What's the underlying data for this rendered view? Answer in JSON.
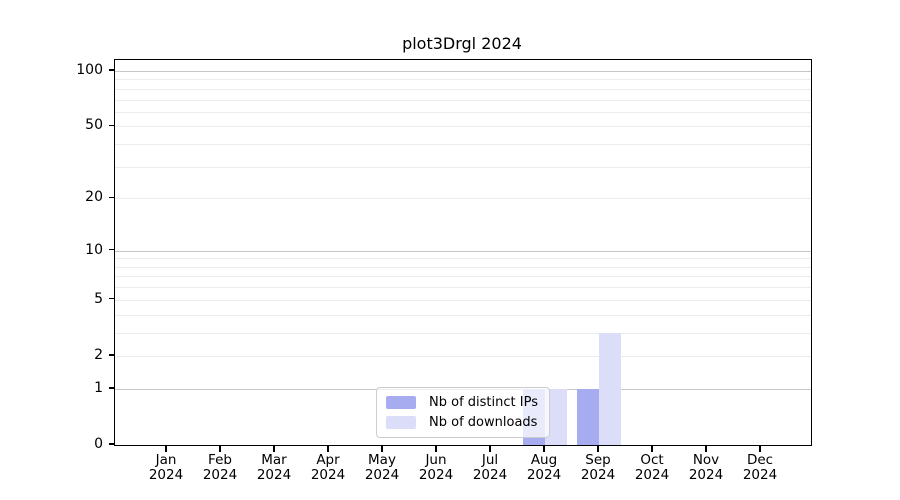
{
  "title": "plot3Drgl 2024",
  "colors": {
    "distinct_ips": "#a7acf1",
    "downloads": "#dcdef9",
    "major_grid": "#c6c6c6",
    "minor_grid": "#ececec",
    "spine": "#000000"
  },
  "chart_data": {
    "type": "bar",
    "title": "plot3Drgl 2024",
    "x_categories": [
      {
        "month": "Jan",
        "year": "2024"
      },
      {
        "month": "Feb",
        "year": "2024"
      },
      {
        "month": "Mar",
        "year": "2024"
      },
      {
        "month": "Apr",
        "year": "2024"
      },
      {
        "month": "May",
        "year": "2024"
      },
      {
        "month": "Jun",
        "year": "2024"
      },
      {
        "month": "Jul",
        "year": "2024"
      },
      {
        "month": "Aug",
        "year": "2024"
      },
      {
        "month": "Sep",
        "year": "2024"
      },
      {
        "month": "Oct",
        "year": "2024"
      },
      {
        "month": "Nov",
        "year": "2024"
      },
      {
        "month": "Dec",
        "year": "2024"
      }
    ],
    "series": [
      {
        "name": "Nb of distinct IPs",
        "color": "#a7acf1",
        "values": [
          0,
          0,
          0,
          0,
          0,
          0,
          0,
          1,
          1,
          0,
          0,
          0
        ]
      },
      {
        "name": "Nb of downloads",
        "color": "#dcdef9",
        "values": [
          0,
          0,
          0,
          0,
          0,
          0,
          0,
          1,
          3,
          0,
          0,
          0
        ]
      }
    ],
    "y_scale": "log1p",
    "y_axis_max": 114.7,
    "y_tick_labels": [
      0,
      1,
      2,
      5,
      10,
      20,
      50,
      100
    ],
    "y_major_gridlines": [
      1,
      10,
      100
    ],
    "y_minor_gridlines": [
      2,
      3,
      4,
      5,
      6,
      7,
      8,
      9,
      20,
      30,
      40,
      50,
      60,
      70,
      80,
      90
    ],
    "grid": true,
    "legend_position": "lower center"
  }
}
